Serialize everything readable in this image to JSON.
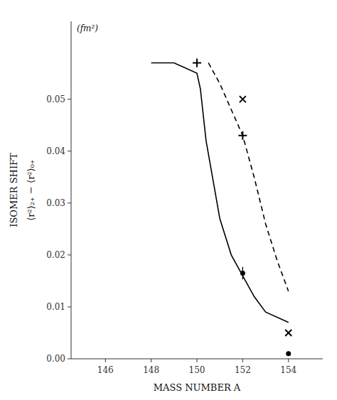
{
  "chart_data": {
    "type": "line",
    "xlabel": "MASS NUMBER A",
    "ylabel": [
      "ISOMER SHIFT",
      "⟨r²⟩₂₊ − ⟨r²⟩₀₊"
    ],
    "annotations": [
      "(fm²)"
    ],
    "xlim": [
      144.5,
      155.5
    ],
    "ylim": [
      0.0,
      0.065
    ],
    "xticks": [
      146,
      148,
      150,
      152,
      154
    ],
    "yticks": [
      {
        "value": 0.0,
        "label": "0.00"
      },
      0.01,
      0.02,
      0.03,
      0.04,
      0.05
    ],
    "grid": false,
    "series": [
      {
        "type": "line",
        "line_style": "solid",
        "color": "#000000",
        "x": [
          148,
          149,
          150,
          150.15,
          150.4,
          151,
          151.5,
          152,
          152.5,
          153,
          154
        ],
        "values": [
          0.057,
          0.057,
          0.055,
          0.052,
          0.042,
          0.027,
          0.02,
          0.016,
          0.012,
          0.009,
          0.007
        ]
      },
      {
        "type": "line",
        "line_style": "dashed",
        "color": "#000000",
        "x": [
          150.5,
          151,
          151.5,
          152,
          152.5,
          153,
          153.5,
          154
        ],
        "values": [
          0.057,
          0.053,
          0.048,
          0.043,
          0.035,
          0.026,
          0.019,
          0.013
        ]
      },
      {
        "type": "scatter",
        "marker": "plus",
        "color": "#000000",
        "x": [
          150,
          152
        ],
        "values": [
          0.057,
          0.043
        ]
      },
      {
        "type": "scatter",
        "marker": "cross",
        "color": "#000000",
        "x": [
          152,
          154
        ],
        "values": [
          0.05,
          0.005
        ]
      },
      {
        "type": "scatter",
        "marker": "circle",
        "color": "#000000",
        "x": [
          152,
          154
        ],
        "values": [
          0.0165,
          0.001
        ],
        "errors": [
          0.0012,
          0.0004
        ]
      }
    ]
  }
}
